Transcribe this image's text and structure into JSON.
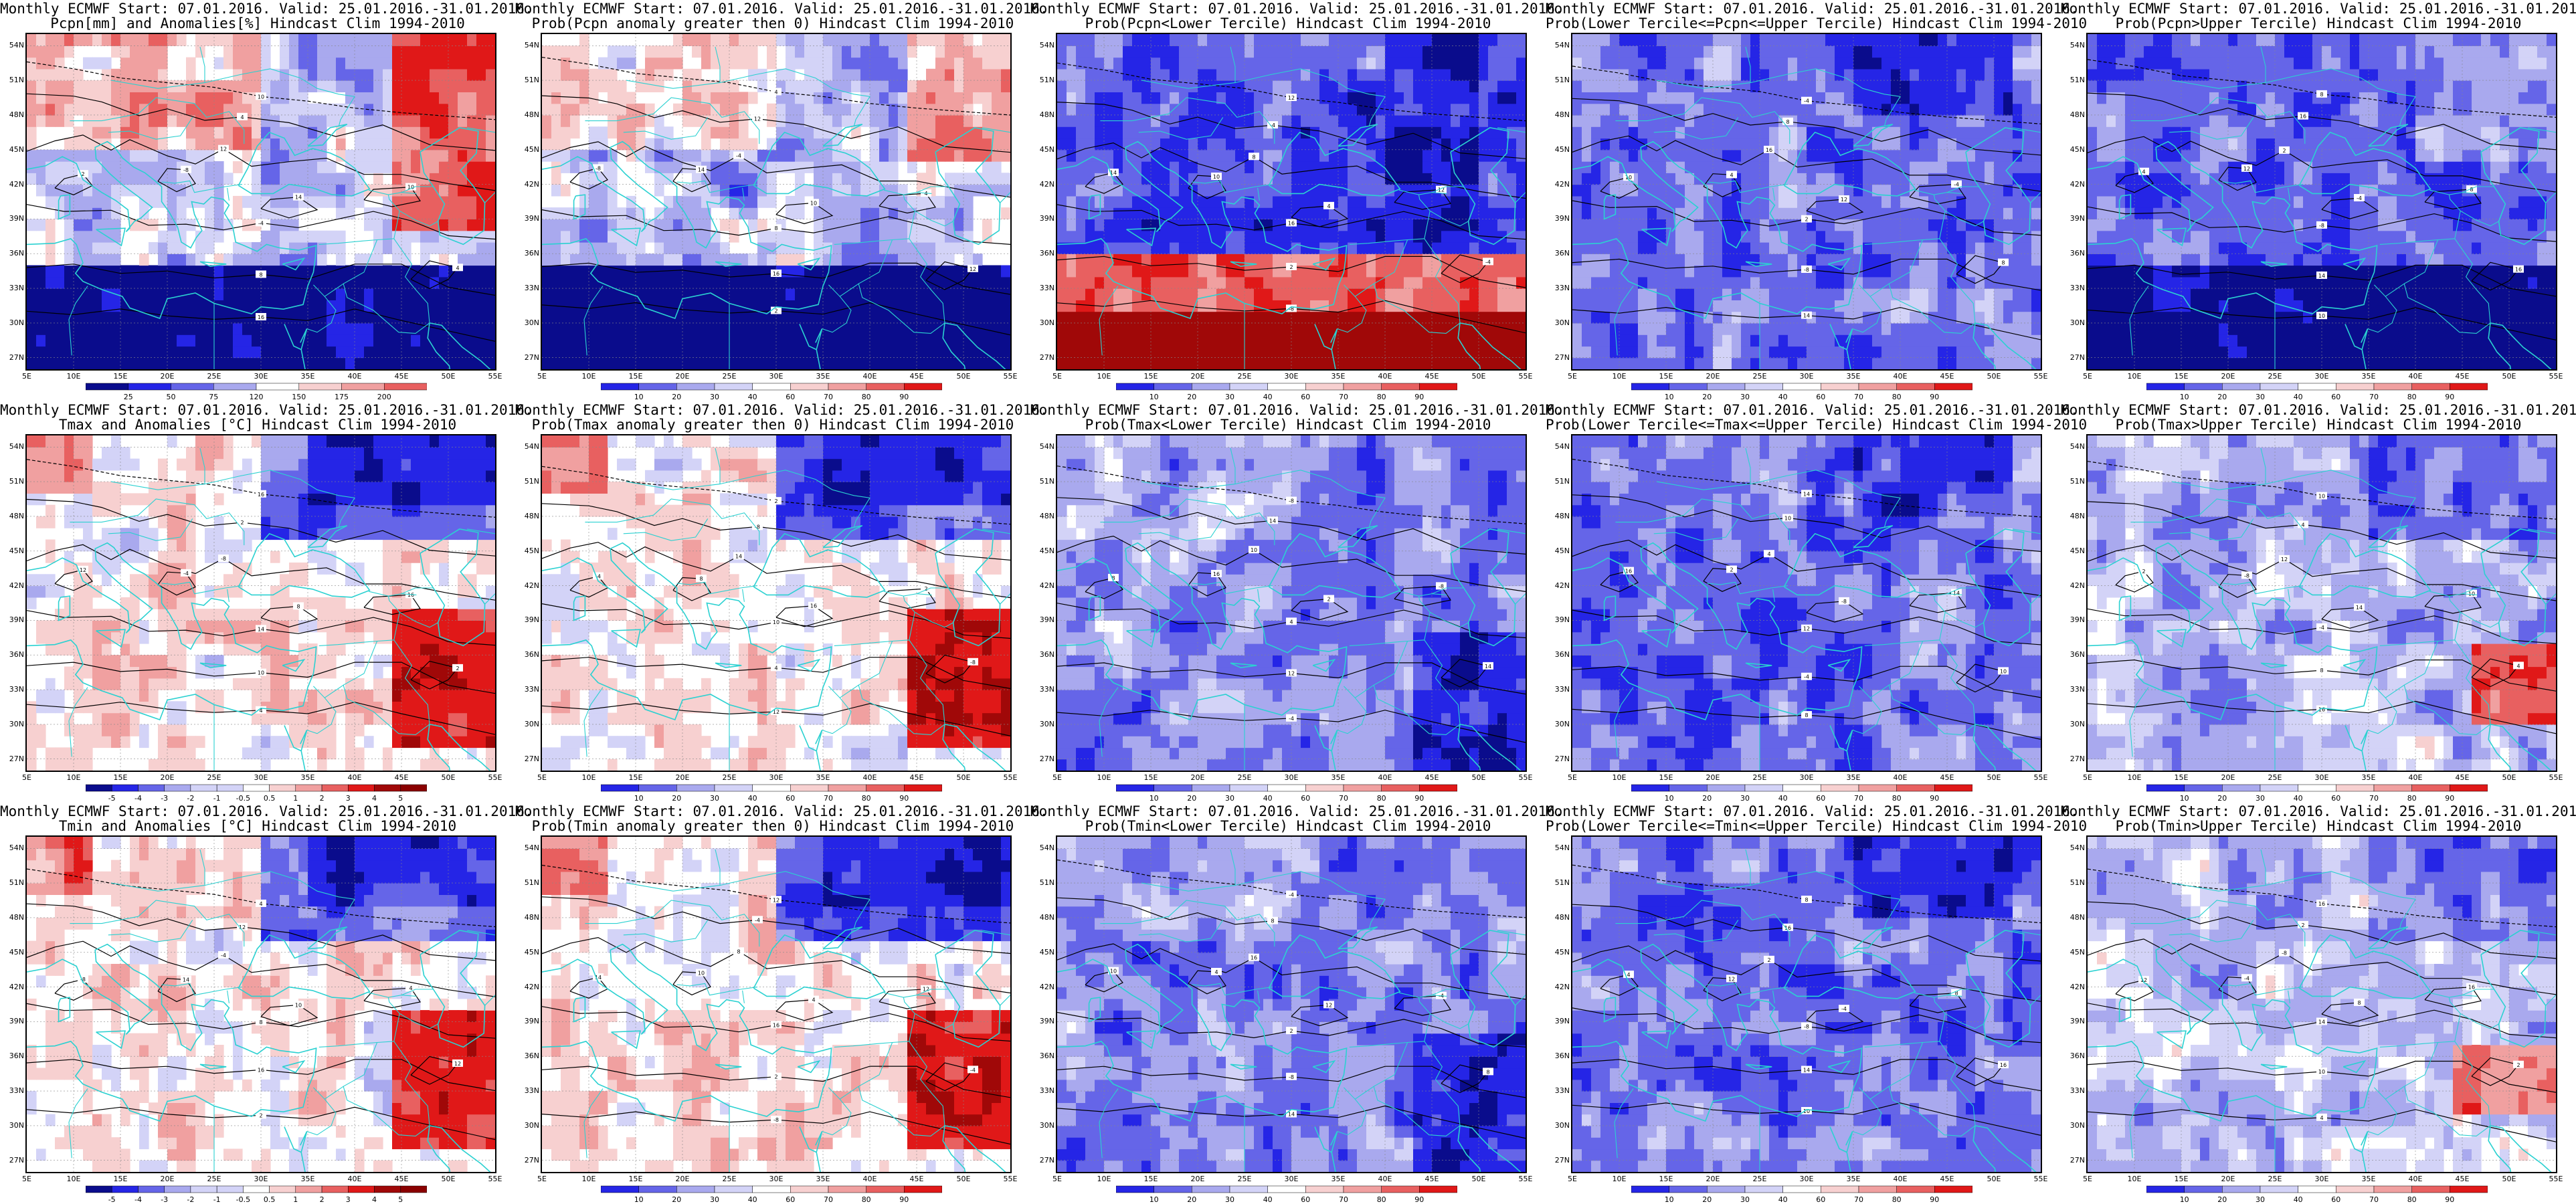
{
  "x_ticks": [
    "5E",
    "10E",
    "15E",
    "20E",
    "25E",
    "30E",
    "35E",
    "40E",
    "45E",
    "50E",
    "55E"
  ],
  "y_ticks": [
    "54N",
    "51N",
    "48N",
    "45N",
    "42N",
    "39N",
    "36N",
    "33N",
    "30N",
    "27N"
  ],
  "colors": {
    "deep_blue": "#0a0c8c",
    "blue": "#2525e6",
    "mid_blue": "#6565e8",
    "light_blue": "#a9a9ee",
    "pale_blue": "#d3d3f7",
    "pale_red": "#f7d0d0",
    "light_red": "#f0a0a0",
    "mid_red": "#e86060",
    "red": "#e01818",
    "deep_red": "#a00808",
    "contour": "#000000",
    "coastline": "#2bd1d1"
  },
  "scales": {
    "pcpn_anom": [
      "25",
      "50",
      "75",
      "120",
      "150",
      "175",
      "200"
    ],
    "temp_anom": [
      "-5",
      "-4",
      "-3",
      "-2",
      "-1",
      "-0.5",
      "0.5",
      "1",
      "2",
      "3",
      "4",
      "5"
    ],
    "prob": [
      "10",
      "20",
      "30",
      "40",
      "60",
      "70",
      "80",
      "90"
    ]
  },
  "panels": [
    {
      "title1": "Monthly ECMWF Start: 07.01.2016. Valid: 25.01.2016.-31.01.2016.",
      "title2": "Pcpn[mm] and Anomalies[%] Hindcast Clim 1994-2010",
      "scale": "pcpn_anom",
      "pattern": "pcpn_anom"
    },
    {
      "title1": "Monthly ECMWF Start: 07.01.2016. Valid: 25.01.2016.-31.01.2016.",
      "title2": "Prob(Pcpn anomaly greater then 0) Hindcast Clim 1994-2010",
      "scale": "prob",
      "pattern": "pcpn_prob"
    },
    {
      "title1": "Monthly ECMWF Start: 07.01.2016. Valid: 25.01.2016.-31.01.2016.",
      "title2": "Prob(Pcpn<Lower Tercile) Hindcast Clim 1994-2010",
      "scale": "prob",
      "pattern": "pcpn_lower"
    },
    {
      "title1": "Monthly ECMWF Start: 07.01.2016. Valid: 25.01.2016.-31.01.2016.",
      "title2": "Prob(Lower Tercile<=Pcpn<=Upper Tercile) Hindcast Clim 1994-2010",
      "scale": "prob",
      "pattern": "middle"
    },
    {
      "title1": "Monthly ECMWF Start: 07.01.2016. Valid: 25.01.2016.-31.01.2016.",
      "title2": "Prob(Pcpn>Upper Tercile) Hindcast Clim 1994-2010",
      "scale": "prob",
      "pattern": "pcpn_upper"
    },
    {
      "title1": "Monthly ECMWF Start: 07.01.2016. Valid: 25.01.2016.-31.01.2016.",
      "title2": "Tmax and Anomalies [°C] Hindcast Clim 1994-2010",
      "scale": "temp_anom",
      "pattern": "temp_anom"
    },
    {
      "title1": "Monthly ECMWF Start: 07.01.2016. Valid: 25.01.2016.-31.01.2016.",
      "title2": "Prob(Tmax anomaly greater then 0) Hindcast Clim 1994-2010",
      "scale": "prob",
      "pattern": "temp_prob"
    },
    {
      "title1": "Monthly ECMWF Start: 07.01.2016. Valid: 25.01.2016.-31.01.2016.",
      "title2": "Prob(Tmax<Lower Tercile) Hindcast Clim 1994-2010",
      "scale": "prob",
      "pattern": "temp_lower"
    },
    {
      "title1": "Monthly ECMWF Start: 07.01.2016. Valid: 25.01.2016.-31.01.2016.",
      "title2": "Prob(Lower Tercile<=Tmax<=Upper Tercile) Hindcast Clim 1994-2010",
      "scale": "prob",
      "pattern": "middle"
    },
    {
      "title1": "Monthly ECMWF Start: 07.01.2016. Valid: 25.01.2016.-31.01.2016.",
      "title2": "Prob(Tmax>Upper Tercile) Hindcast Clim 1994-2010",
      "scale": "prob",
      "pattern": "temp_upper"
    },
    {
      "title1": "Monthly ECMWF Start: 07.01.2016. Valid: 25.01.2016.-31.01.2016.",
      "title2": "Tmin and Anomalies [°C] Hindcast Clim 1994-2010",
      "scale": "temp_anom",
      "pattern": "temp_anom"
    },
    {
      "title1": "Monthly ECMWF Start: 07.01.2016. Valid: 25.01.2016.-31.01.2016.",
      "title2": "Prob(Tmin anomaly greater then 0) Hindcast Clim 1994-2010",
      "scale": "prob",
      "pattern": "temp_prob"
    },
    {
      "title1": "Monthly ECMWF Start: 07.01.2016. Valid: 25.01.2016.-31.01.2016.",
      "title2": "Prob(Tmin<Lower Tercile) Hindcast Clim 1994-2010",
      "scale": "prob",
      "pattern": "temp_lower"
    },
    {
      "title1": "Monthly ECMWF Start: 07.01.2016. Valid: 25.01.2016.-31.01.2016.",
      "title2": "Prob(Lower Tercile<=Tmin<=Upper Tercile) Hindcast Clim 1994-2010",
      "scale": "prob",
      "pattern": "middle"
    },
    {
      "title1": "Monthly ECMWF Start: 07.01.2016. Valid: 25.01.2016.-31.01.2016.",
      "title2": "Prob(Tmin>Upper Tercile) Hindcast Clim 1994-2010",
      "scale": "prob",
      "pattern": "tmin_upper"
    }
  ]
}
